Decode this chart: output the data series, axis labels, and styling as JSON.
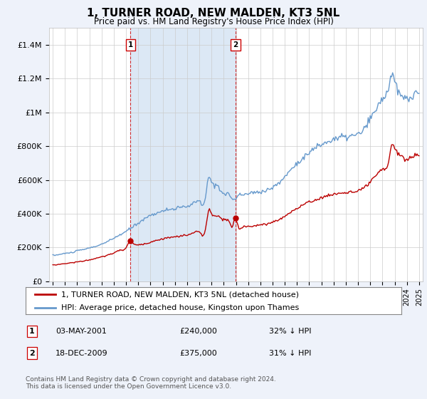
{
  "title": "1, TURNER ROAD, NEW MALDEN, KT3 5NL",
  "subtitle": "Price paid vs. HM Land Registry's House Price Index (HPI)",
  "legend_label_red": "1, TURNER ROAD, NEW MALDEN, KT3 5NL (detached house)",
  "legend_label_blue": "HPI: Average price, detached house, Kingston upon Thames",
  "annotation1_label": "1",
  "annotation1_date": "03-MAY-2001",
  "annotation1_price": "£240,000",
  "annotation1_hpi": "32% ↓ HPI",
  "annotation2_label": "2",
  "annotation2_date": "18-DEC-2009",
  "annotation2_price": "£375,000",
  "annotation2_hpi": "31% ↓ HPI",
  "footer": "Contains HM Land Registry data © Crown copyright and database right 2024.\nThis data is licensed under the Open Government Licence v3.0.",
  "ylim": [
    0,
    1500000
  ],
  "yticks": [
    0,
    200000,
    400000,
    600000,
    800000,
    1000000,
    1200000,
    1400000
  ],
  "ytick_labels": [
    "£0",
    "£200K",
    "£400K",
    "£600K",
    "£800K",
    "£1M",
    "£1.2M",
    "£1.4M"
  ],
  "bg_color": "#eef2fa",
  "plot_bg_color": "#ffffff",
  "red_color": "#bb0000",
  "blue_color": "#6699cc",
  "vline_color": "#cc0000",
  "span_color": "#dce8f5",
  "sale1_x": 2001.37,
  "sale2_x": 2009.96,
  "sale1_price": 240000,
  "sale2_price": 375000
}
